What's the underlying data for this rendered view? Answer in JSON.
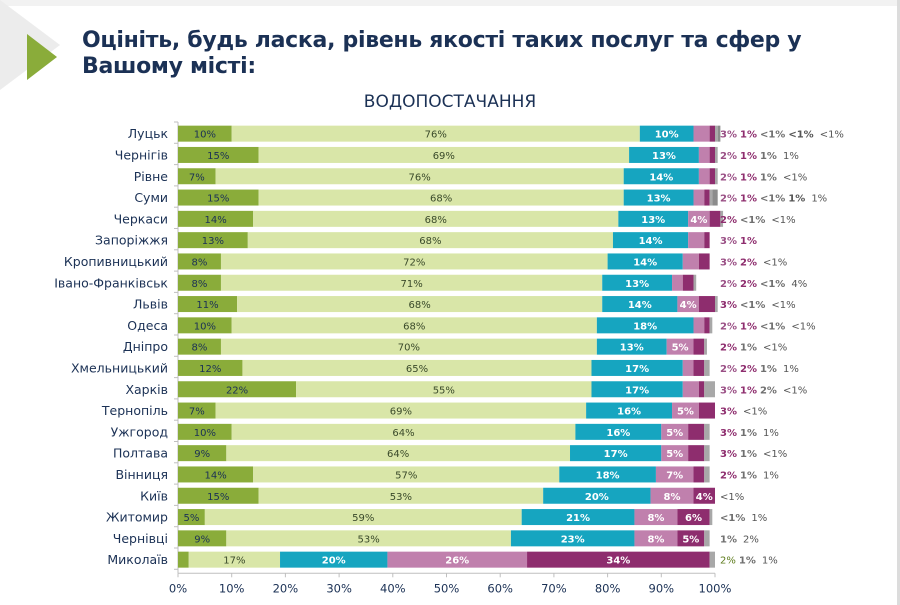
{
  "header": {
    "title": "Оцініть, будь ласка, рівень якості таких послуг та сфер у Вашому місті:",
    "subtitle": "ВОДОПОСТАЧАННЯ"
  },
  "colors": {
    "accent": "#8aac3a",
    "title": "#1b3155",
    "series": [
      "#8aac3a",
      "#d9e6a8",
      "#16a5c0",
      "#c080ad",
      "#8e2d6e",
      "#a8a8a8"
    ]
  },
  "chart_data": {
    "type": "bar",
    "orientation": "horizontal",
    "stacked": "100%",
    "title": "ВОДОПОСТАЧАННЯ",
    "xlabel": "",
    "ylabel": "",
    "xlim": [
      0,
      100
    ],
    "x_ticks": [
      "0%",
      "10%",
      "20%",
      "30%",
      "40%",
      "50%",
      "60%",
      "70%",
      "80%",
      "90%",
      "100%"
    ],
    "categories": [
      "Луцьк",
      "Чернігів",
      "Рівне",
      "Суми",
      "Черкаси",
      "Запоріжжя",
      "Кропивницький",
      "Івано-Франківськ",
      "Львів",
      "Одеса",
      "Дніпро",
      "Хмельницький",
      "Харків",
      "Тернопіль",
      "Ужгород",
      "Полтава",
      "Вінниця",
      "Київ",
      "Житомир",
      "Чернівці",
      "Миколаїв"
    ],
    "series": [
      {
        "name": "series-1",
        "values": [
          10,
          15,
          7,
          15,
          14,
          13,
          8,
          8,
          11,
          10,
          8,
          12,
          22,
          7,
          10,
          9,
          14,
          15,
          5,
          9,
          2
        ],
        "labels": [
          "10%",
          "15%",
          "7%",
          "15%",
          "14%",
          "13%",
          "8%",
          "8%",
          "11%",
          "10%",
          "8%",
          "12%",
          "22%",
          "7%",
          "10%",
          "9%",
          "14%",
          "15%",
          "5%",
          "9%",
          "2%"
        ]
      },
      {
        "name": "series-2",
        "values": [
          76,
          69,
          76,
          68,
          68,
          68,
          72,
          71,
          68,
          68,
          70,
          65,
          55,
          69,
          64,
          64,
          57,
          53,
          59,
          53,
          17
        ],
        "labels": [
          "76%",
          "69%",
          "76%",
          "68%",
          "68%",
          "68%",
          "72%",
          "71%",
          "68%",
          "68%",
          "70%",
          "65%",
          "55%",
          "69%",
          "64%",
          "64%",
          "57%",
          "53%",
          "59%",
          "53%",
          "17%"
        ]
      },
      {
        "name": "series-3",
        "values": [
          10,
          13,
          14,
          13,
          13,
          14,
          14,
          13,
          14,
          18,
          13,
          17,
          17,
          16,
          16,
          17,
          18,
          20,
          21,
          23,
          20
        ],
        "labels": [
          "10%",
          "13%",
          "14%",
          "13%",
          "13%",
          "14%",
          "14%",
          "13%",
          "14%",
          "18%",
          "13%",
          "17%",
          "17%",
          "16%",
          "16%",
          "17%",
          "18%",
          "20%",
          "21%",
          "23%",
          "20%"
        ]
      },
      {
        "name": "series-4",
        "values": [
          3,
          2,
          2,
          2,
          4,
          3,
          3,
          2,
          4,
          2,
          5,
          2,
          3,
          5,
          5,
          5,
          7,
          8,
          8,
          8,
          26
        ],
        "labels": [
          "3%",
          "2%",
          "2%",
          "2%",
          "4%",
          "3%",
          "3%",
          "2%",
          "4%",
          "2%",
          "5%",
          "2%",
          "3%",
          "5%",
          "5%",
          "5%",
          "7%",
          "8%",
          "8%",
          "8%",
          "26%"
        ]
      },
      {
        "name": "series-5",
        "values": [
          1,
          1,
          1,
          1,
          2,
          1,
          2,
          2,
          3,
          1,
          2,
          2,
          1,
          3,
          3,
          3,
          2,
          4,
          6,
          5,
          34
        ],
        "labels": [
          "1%",
          "1%",
          "1%",
          "1%",
          "2%",
          "1%",
          "2%",
          "2%",
          "3%",
          "1%",
          "2%",
          "2%",
          "1%",
          "3%",
          "3%",
          "3%",
          "2%",
          "4%",
          "6%",
          "5%",
          "34%"
        ]
      },
      {
        "name": "series-6",
        "values": [
          0.5,
          0.5,
          0.5,
          0.5,
          0.5,
          0,
          0,
          0.5,
          0.5,
          0.5,
          0.5,
          1,
          2,
          0,
          1,
          1,
          1,
          0,
          0.5,
          1,
          1
        ],
        "labels": [
          "<1%",
          "1%",
          "1%",
          "<1%",
          "<1%",
          "",
          "",
          "<1%",
          "<1%",
          "<1%",
          "1%",
          "1%",
          "2%",
          "",
          "1%",
          "1%",
          "1%",
          "",
          "<1%",
          "1%",
          "1%"
        ]
      },
      {
        "name": "series-7",
        "values": [
          0.5,
          0,
          0,
          1,
          0,
          0,
          0,
          0,
          0,
          0,
          0,
          0,
          0,
          0,
          0,
          0,
          0,
          0,
          0,
          0,
          0
        ],
        "labels": [
          "<1%",
          "",
          "",
          "1%",
          "",
          "",
          "",
          "",
          "",
          "",
          "",
          "",
          "",
          "",
          "",
          "",
          "",
          "",
          "",
          "",
          ""
        ]
      }
    ],
    "outside_labels": [
      "<1%",
      "1%",
      "<1%",
      "1%",
      "<1%",
      "",
      "<1%",
      "4%",
      "<1%",
      "<1%",
      "<1%",
      "1%",
      "<1%",
      "<1%",
      "1%",
      "<1%",
      "1%",
      "<1%",
      "1%",
      "2%",
      "1%"
    ],
    "grid": false,
    "legend": "none"
  }
}
